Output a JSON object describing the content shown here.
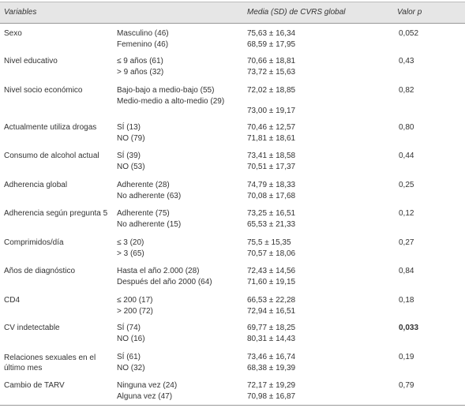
{
  "header": {
    "variables": "Variables",
    "media": "Media (SD) de CVRS global",
    "p": "Valor p"
  },
  "rows": [
    {
      "variable": "Sexo",
      "items": [
        {
          "label": "Masculino (46)",
          "value": "75,63 ± 16,34"
        },
        {
          "label": "Femenino (46)",
          "value": "68,59 ± 17,95"
        }
      ],
      "p": "0,052"
    },
    {
      "variable": "Nivel educativo",
      "items": [
        {
          "label": "≤ 9 años (61)",
          "value": "70,66 ± 18,81"
        },
        {
          "label": "> 9 años (32)",
          "value": "73,72 ± 15,63"
        }
      ],
      "p": "0,43"
    },
    {
      "variable": "Nivel socio económico",
      "items": [
        {
          "label": "Bajo-bajo a medio-bajo (55)",
          "value": "72,02 ± 18,85"
        },
        {
          "label": "Medio-medio a alto-medio (29)",
          "value": "73,00 ± 19,17"
        }
      ],
      "p": "0,82"
    },
    {
      "variable": "Actualmente utiliza drogas",
      "items": [
        {
          "label": "SÍ (13)",
          "value": "70,46 ± 12,57"
        },
        {
          "label": "NO (79)",
          "value": "71,81 ± 18,61"
        }
      ],
      "p": "0,80"
    },
    {
      "variable": "Consumo de alcohol actual",
      "items": [
        {
          "label": "SÍ (39)",
          "value": "73,41 ± 18,58"
        },
        {
          "label": "NO (53)",
          "value": "70,51 ± 17,37"
        }
      ],
      "p": "0,44"
    },
    {
      "variable": "Adherencia global",
      "items": [
        {
          "label": "Adherente (28)",
          "value": "74,79 ± 18,33"
        },
        {
          "label": "No adherente (63)",
          "value": "70,08 ± 17,68"
        }
      ],
      "p": "0,25"
    },
    {
      "variable": "Adherencia según pregunta 5",
      "items": [
        {
          "label": "Adherente (75)",
          "value": "73,25 ± 16,51"
        },
        {
          "label": "No adherente (15)",
          "value": "65,53 ± 21,33"
        }
      ],
      "p": "0,12"
    },
    {
      "variable": "Comprimidos/día",
      "items": [
        {
          "label": "≤ 3 (20)",
          "value": "75,5 ± 15,35"
        },
        {
          "label": "> 3 (65)",
          "value": "70,57 ± 18,06"
        }
      ],
      "p": "0,27"
    },
    {
      "variable": "Años de diagnóstico",
      "items": [
        {
          "label": "Hasta el año 2.000 (28)",
          "value": "72,43 ± 14,56"
        },
        {
          "label": "Después del año 2000 (64)",
          "value": "71,60 ± 19,15"
        }
      ],
      "p": "0,84"
    },
    {
      "variable": "CD4",
      "items": [
        {
          "label": "≤ 200 (17)",
          "value": "66,53 ± 22,28"
        },
        {
          "label": "> 200 (72)",
          "value": "72,94 ± 16,51"
        }
      ],
      "p": "0,18"
    },
    {
      "variable": "CV indetectable",
      "items": [
        {
          "label": "SÍ (74)",
          "value": "69,77 ± 18,25"
        },
        {
          "label": "NO (16)",
          "value": "80,31 ± 14,43"
        }
      ],
      "p": "0,033",
      "bold": true
    },
    {
      "variable": "Relaciones sexuales en el último mes",
      "items": [
        {
          "label": "SÍ (61)",
          "value": "73,46 ± 16,74"
        },
        {
          "label": "NO (32)",
          "value": "68,38 ± 19,39"
        }
      ],
      "p": "0,19"
    },
    {
      "variable": "Cambio de TARV",
      "items": [
        {
          "label": "Ninguna vez (24)",
          "value": "72,17 ± 19,29"
        },
        {
          "label": "Alguna vez (47)",
          "value": "70,98 ± 16,87"
        }
      ],
      "p": "0,79"
    }
  ]
}
